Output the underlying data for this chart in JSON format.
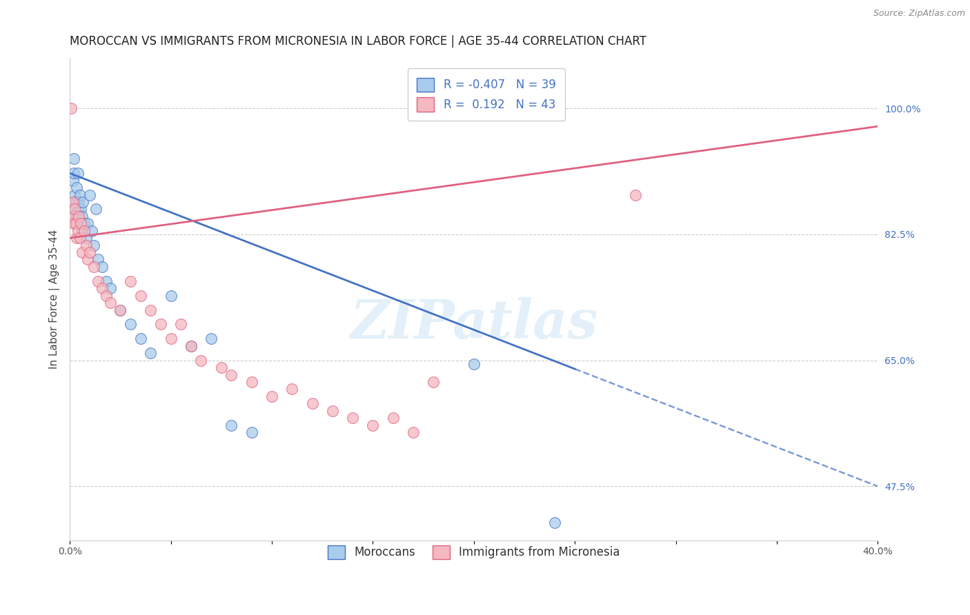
{
  "title": "MOROCCAN VS IMMIGRANTS FROM MICRONESIA IN LABOR FORCE | AGE 35-44 CORRELATION CHART",
  "source": "Source: ZipAtlas.com",
  "ylabel": "In Labor Force | Age 35-44",
  "xlim": [
    0.0,
    40.0
  ],
  "ylim": [
    40.0,
    107.0
  ],
  "yticks": [
    47.5,
    65.0,
    82.5,
    100.0
  ],
  "ytick_labels": [
    "47.5%",
    "65.0%",
    "82.5%",
    "100.0%"
  ],
  "xticks": [
    0.0,
    5.0,
    10.0,
    15.0,
    20.0,
    25.0,
    30.0,
    35.0,
    40.0
  ],
  "xtick_show": [
    "0.0%",
    "",
    "",
    "",
    "",
    "",
    "",
    "",
    "40.0%"
  ],
  "legend_blue_r": "-0.407",
  "legend_blue_n": "39",
  "legend_pink_r": "0.192",
  "legend_pink_n": "43",
  "blue_color": "#a8ccec",
  "pink_color": "#f4b8c0",
  "blue_line_color": "#4472c4",
  "pink_line_color": "#e06080",
  "watermark": "ZIPatlas",
  "blue_scatter_x": [
    0.1,
    0.15,
    0.2,
    0.2,
    0.25,
    0.3,
    0.35,
    0.35,
    0.4,
    0.4,
    0.45,
    0.5,
    0.5,
    0.55,
    0.6,
    0.6,
    0.65,
    0.7,
    0.8,
    0.9,
    1.0,
    1.1,
    1.2,
    1.3,
    1.4,
    1.6,
    1.8,
    2.0,
    2.5,
    3.0,
    3.5,
    4.0,
    5.0,
    6.0,
    7.0,
    8.0,
    9.0,
    20.0,
    24.0
  ],
  "blue_scatter_y": [
    86.0,
    90.0,
    91.0,
    93.0,
    88.0,
    87.0,
    89.0,
    85.0,
    91.0,
    86.0,
    87.0,
    84.0,
    88.0,
    86.0,
    85.0,
    83.0,
    87.0,
    84.0,
    82.0,
    84.0,
    88.0,
    83.0,
    81.0,
    86.0,
    79.0,
    78.0,
    76.0,
    75.0,
    72.0,
    70.0,
    68.0,
    66.0,
    74.0,
    67.0,
    68.0,
    56.0,
    55.0,
    64.5,
    42.5
  ],
  "pink_scatter_x": [
    0.05,
    0.1,
    0.15,
    0.2,
    0.25,
    0.3,
    0.35,
    0.4,
    0.45,
    0.5,
    0.55,
    0.6,
    0.7,
    0.8,
    0.9,
    1.0,
    1.2,
    1.4,
    1.6,
    1.8,
    2.0,
    2.5,
    3.0,
    3.5,
    4.0,
    4.5,
    5.0,
    5.5,
    6.0,
    6.5,
    7.5,
    8.0,
    9.0,
    10.0,
    11.0,
    12.0,
    13.0,
    14.0,
    15.0,
    16.0,
    17.0,
    18.0,
    28.0
  ],
  "pink_scatter_y": [
    100.0,
    85.0,
    87.0,
    84.0,
    86.0,
    84.0,
    82.0,
    83.0,
    85.0,
    82.0,
    84.0,
    80.0,
    83.0,
    81.0,
    79.0,
    80.0,
    78.0,
    76.0,
    75.0,
    74.0,
    73.0,
    72.0,
    76.0,
    74.0,
    72.0,
    70.0,
    68.0,
    70.0,
    67.0,
    65.0,
    64.0,
    63.0,
    62.0,
    60.0,
    61.0,
    59.0,
    58.0,
    57.0,
    56.0,
    57.0,
    55.0,
    62.0,
    88.0
  ],
  "blue_trend_x0": 0.0,
  "blue_trend_x1": 40.0,
  "blue_trend_y0": 91.0,
  "blue_trend_y1": 47.5,
  "blue_solid_end": 25.0,
  "pink_trend_x0": 0.0,
  "pink_trend_x1": 40.0,
  "pink_trend_y0": 82.0,
  "pink_trend_y1": 97.5,
  "title_fontsize": 12,
  "axis_label_fontsize": 11,
  "tick_fontsize": 10,
  "legend_fontsize": 12
}
